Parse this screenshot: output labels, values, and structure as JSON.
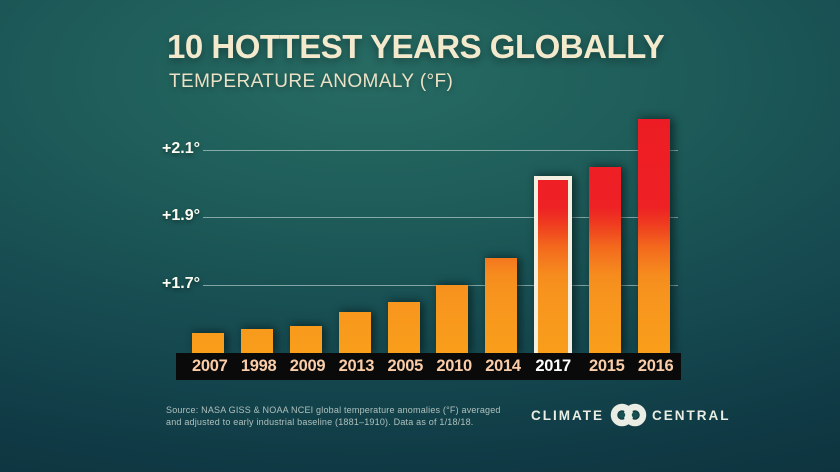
{
  "header": {
    "title": "10 HOTTEST YEARS GLOBALLY",
    "subtitle": "TEMPERATURE ANOMALY (°F)"
  },
  "chart_data": {
    "type": "bar",
    "categories": [
      "2007",
      "1998",
      "2009",
      "2013",
      "2005",
      "2010",
      "2014",
      "2017",
      "2015",
      "2016"
    ],
    "values": [
      1.56,
      1.57,
      1.58,
      1.62,
      1.65,
      1.7,
      1.78,
      2.01,
      2.05,
      2.19
    ],
    "unit": "°F",
    "highlighted_category": "2017",
    "title": "10 HOTTEST YEARS GLOBALLY",
    "subtitle": "TEMPERATURE ANOMALY (°F)",
    "yticks": [
      {
        "label": "+2.1°",
        "value": 2.1
      },
      {
        "label": "+1.9°",
        "value": 1.9
      },
      {
        "label": "+1.7°",
        "value": 1.7
      }
    ],
    "ylim": [
      1.5,
      2.205
    ],
    "grid": "horizontal gridlines behind bars",
    "legend": "none"
  },
  "footer": {
    "source_line1": "Source: NASA GISS & NOAA NCEI global temperature anomalies (°F) averaged",
    "source_line2": "and adjusted to early industrial baseline (1881–1910). Data as of 1/18/18.",
    "brand_left": "CLIMATE",
    "brand_right": "CENTRAL"
  },
  "colors": {
    "background_center": "#276b63",
    "background_edge": "#0d303b",
    "title": "#F3E9CD",
    "subtitle": "#EAE1C6",
    "bar_orange": "#F7941E",
    "bar_red": "#ED1C24",
    "highlight_outline": "#F3F0E2",
    "axis_strip": "#0A0A0A",
    "x_label": "#FACDA8",
    "x_label_highlight": "#FFFFFF",
    "gridline": "rgba(218,234,231,0.55)",
    "source_text": "#AFC0BD",
    "brand_text": "#EAEDE3"
  }
}
